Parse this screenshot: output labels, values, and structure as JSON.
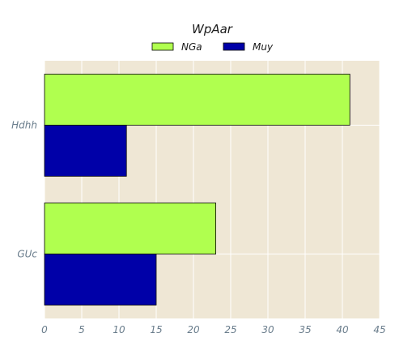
{
  "chart_data": {
    "type": "bar",
    "orientation": "horizontal",
    "title": "WpAar",
    "xlabel": "",
    "ylabel": "",
    "categories": [
      "Hdhh",
      "GUc"
    ],
    "series": [
      {
        "name": "NGa",
        "values": [
          41,
          23
        ],
        "color": "#b0ff4f"
      },
      {
        "name": "Muy",
        "values": [
          11,
          15
        ],
        "color": "#0000a8"
      }
    ],
    "xlim": [
      0,
      45
    ],
    "xticks": [
      0,
      5,
      10,
      15,
      20,
      25,
      30,
      35,
      40,
      45
    ],
    "grid": true,
    "legend_position": "top-center",
    "background_color": "#efe7d5",
    "grid_color": "#ffffff"
  }
}
